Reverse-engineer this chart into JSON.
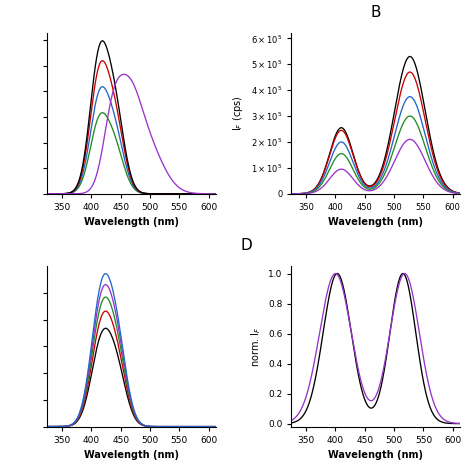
{
  "colors_A": [
    "black",
    "#CC0000",
    "#2266CC",
    "#228B22",
    "#9933CC"
  ],
  "colors_B": [
    "black",
    "#CC0000",
    "#2266CC",
    "#228B22",
    "#9933CC"
  ],
  "colors_C": [
    "black",
    "#CC0000",
    "#228B22",
    "#9933CC",
    "#2266CC"
  ],
  "colors_D": [
    "black",
    "#9933CC"
  ],
  "xlabel": "Wavelength (nm)",
  "B_ylabel": "I$_F$ (cps)",
  "D_ylabel": "norm. I$_F$",
  "B_ylim": [
    0,
    620000.0
  ],
  "D_ylim": [
    -0.02,
    1.05
  ],
  "D_yticks": [
    0.0,
    0.2,
    0.4,
    0.6,
    0.8,
    1.0
  ],
  "xlim": [
    325,
    612
  ],
  "xticks": [
    350,
    400,
    450,
    500,
    550,
    600
  ]
}
